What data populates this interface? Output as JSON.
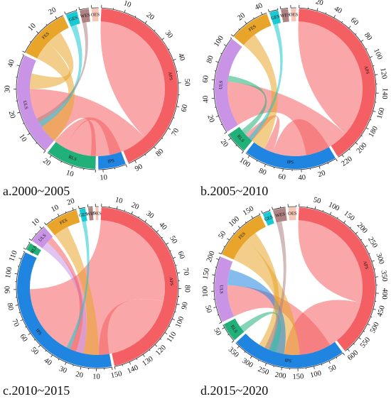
{
  "chart_data": [
    {
      "type": "chord",
      "caption": "a.2000~2005",
      "unit_step": 10,
      "segments": [
        {
          "name": "APS",
          "value": 93,
          "color": "#f45f63"
        },
        {
          "name": "IPS",
          "value": 12,
          "color": "#1f85e0"
        },
        {
          "name": "RLS",
          "value": 22,
          "color": "#22b07a"
        },
        {
          "name": "ULS",
          "value": 45,
          "color": "#c993e6"
        },
        {
          "name": "FES",
          "value": 23,
          "color": "#e8a52a"
        },
        {
          "name": "GES",
          "value": 5,
          "color": "#19c9d3"
        },
        {
          "name": "WES",
          "value": 4,
          "color": "#b08383"
        },
        {
          "name": "OES",
          "value": 3,
          "color": "#f7c6b6"
        }
      ],
      "flows": [
        {
          "from": "APS",
          "to": "APS",
          "value": 40
        },
        {
          "from": "APS",
          "to": "ULS",
          "value": 30
        },
        {
          "from": "APS",
          "to": "RLS",
          "value": 14
        },
        {
          "from": "APS",
          "to": "IPS",
          "value": 6
        },
        {
          "from": "FES",
          "to": "APS",
          "value": 10
        },
        {
          "from": "FES",
          "to": "ULS",
          "value": 8
        },
        {
          "from": "GES",
          "to": "APS",
          "value": 3
        },
        {
          "from": "WES",
          "to": "APS",
          "value": 2
        }
      ]
    },
    {
      "type": "chord",
      "caption": "b.2005~2010",
      "unit_step": 20,
      "segments": [
        {
          "name": "APS",
          "value": 225,
          "color": "#f45f63"
        },
        {
          "name": "IPS",
          "value": 105,
          "color": "#1f85e0"
        },
        {
          "name": "RLS",
          "value": 25,
          "color": "#22b07a"
        },
        {
          "name": "ULS",
          "value": 110,
          "color": "#c993e6"
        },
        {
          "name": "FES",
          "value": 45,
          "color": "#e8a52a"
        },
        {
          "name": "GES",
          "value": 10,
          "color": "#19c9d3"
        },
        {
          "name": "WES",
          "value": 8,
          "color": "#b08383"
        },
        {
          "name": "OES",
          "value": 6,
          "color": "#f7c6b6"
        }
      ],
      "flows": [
        {
          "from": "APS",
          "to": "APS",
          "value": 100
        },
        {
          "from": "APS",
          "to": "ULS",
          "value": 60
        },
        {
          "from": "APS",
          "to": "IPS",
          "value": 45
        },
        {
          "from": "APS",
          "to": "RLS",
          "value": 12
        },
        {
          "from": "FES",
          "to": "APS",
          "value": 20
        },
        {
          "from": "RLS",
          "to": "ULS",
          "value": 8
        },
        {
          "from": "GES",
          "to": "APS",
          "value": 6
        }
      ]
    },
    {
      "type": "chord",
      "caption": "c.2010~2015",
      "unit_step": 10,
      "segments": [
        {
          "name": "APS",
          "value": 150,
          "color": "#f45f63"
        },
        {
          "name": "IPS",
          "value": 115,
          "color": "#1f85e0"
        },
        {
          "name": "RLS",
          "value": 5,
          "color": "#22b07a"
        },
        {
          "name": "ULS",
          "value": 12,
          "color": "#c993e6"
        },
        {
          "name": "FES",
          "value": 22,
          "color": "#e8a52a"
        },
        {
          "name": "GES",
          "value": 4,
          "color": "#19c9d3"
        },
        {
          "name": "WES",
          "value": 3,
          "color": "#b08383"
        },
        {
          "name": "OES",
          "value": 2,
          "color": "#f7c6b6"
        }
      ],
      "flows": [
        {
          "from": "APS",
          "to": "IPS",
          "value": 90
        },
        {
          "from": "APS",
          "to": "APS",
          "value": 35
        },
        {
          "from": "FES",
          "to": "APS",
          "value": 12
        },
        {
          "from": "ULS",
          "to": "APS",
          "value": 6
        },
        {
          "from": "APS",
          "to": "ULS",
          "value": 5
        },
        {
          "from": "GES",
          "to": "APS",
          "value": 3
        }
      ]
    },
    {
      "type": "chord",
      "caption": "d.2015~2020",
      "unit_step": 50,
      "segments": [
        {
          "name": "APS",
          "value": 610,
          "color": "#f45f63"
        },
        {
          "name": "IPS",
          "value": 365,
          "color": "#1f85e0"
        },
        {
          "name": "RLS",
          "value": 60,
          "color": "#22b07a"
        },
        {
          "name": "ULS",
          "value": 210,
          "color": "#c993e6"
        },
        {
          "name": "FES",
          "value": 175,
          "color": "#e8a52a"
        },
        {
          "name": "GES",
          "value": 25,
          "color": "#19c9d3"
        },
        {
          "name": "WES",
          "value": 40,
          "color": "#b08383"
        },
        {
          "name": "OES",
          "value": 25,
          "color": "#f7c6b6"
        }
      ],
      "flows": [
        {
          "from": "APS",
          "to": "APS",
          "value": 220
        },
        {
          "from": "APS",
          "to": "IPS",
          "value": 200
        },
        {
          "from": "APS",
          "to": "ULS",
          "value": 120
        },
        {
          "from": "FES",
          "to": "APS",
          "value": 90
        },
        {
          "from": "IPS",
          "to": "ULS",
          "value": 60
        },
        {
          "from": "FES",
          "to": "IPS",
          "value": 40
        },
        {
          "from": "RLS",
          "to": "APS",
          "value": 25
        },
        {
          "from": "WES",
          "to": "APS",
          "value": 20
        }
      ]
    }
  ]
}
